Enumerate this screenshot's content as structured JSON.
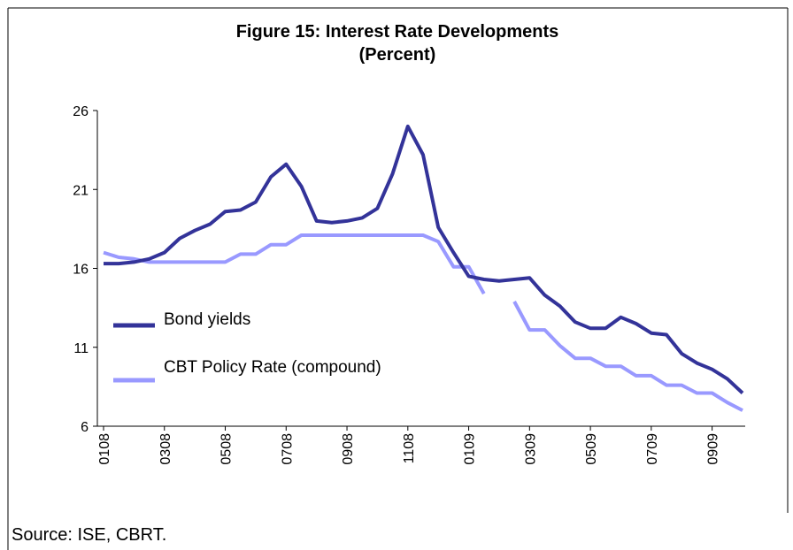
{
  "chart_data": {
    "type": "line",
    "title": "Figure 15: Interest Rate Developments",
    "subtitle": "(Percent)",
    "categories": [
      "0108",
      null,
      null,
      null,
      "0308",
      null,
      null,
      null,
      "0508",
      null,
      null,
      null,
      "0708",
      null,
      null,
      null,
      "0908",
      null,
      null,
      null,
      "1108",
      null,
      null,
      null,
      "0109",
      null,
      null,
      null,
      "0309",
      null,
      null,
      null,
      "0509",
      null,
      null,
      null,
      "0709",
      null,
      null,
      null,
      "0909",
      null,
      null
    ],
    "series": [
      {
        "name": "Bond yields",
        "color": "#333399",
        "values": [
          16.3,
          16.3,
          16.4,
          16.6,
          17.0,
          17.9,
          18.4,
          18.8,
          19.6,
          19.7,
          20.2,
          21.8,
          22.6,
          21.2,
          19.0,
          18.9,
          19.0,
          19.2,
          19.8,
          22.0,
          25.0,
          23.2,
          18.6,
          17.0,
          15.5,
          15.3,
          15.2,
          15.3,
          15.4,
          14.3,
          13.6,
          12.6,
          12.2,
          12.2,
          12.9,
          12.5,
          11.9,
          11.8,
          10.6,
          10.0,
          9.6,
          9.0,
          8.1
        ]
      },
      {
        "name": "CBT Policy Rate (compound)",
        "color": "#9999ff",
        "values": [
          17.0,
          16.7,
          16.6,
          16.4,
          16.4,
          16.4,
          16.4,
          16.4,
          16.4,
          16.9,
          16.9,
          17.5,
          17.5,
          18.1,
          18.1,
          18.1,
          18.1,
          18.1,
          18.1,
          18.1,
          18.1,
          18.1,
          17.7,
          16.1,
          16.1,
          14.4,
          null,
          13.9,
          12.1,
          12.1,
          11.1,
          10.3,
          10.3,
          9.8,
          9.8,
          9.2,
          9.2,
          8.6,
          8.6,
          8.1,
          8.1,
          7.5,
          7.0
        ]
      }
    ],
    "ylim": [
      6,
      26
    ],
    "yticks": [
      6,
      11,
      16,
      21,
      26
    ],
    "legend": "left"
  },
  "source": "Source: ISE, CBRT."
}
